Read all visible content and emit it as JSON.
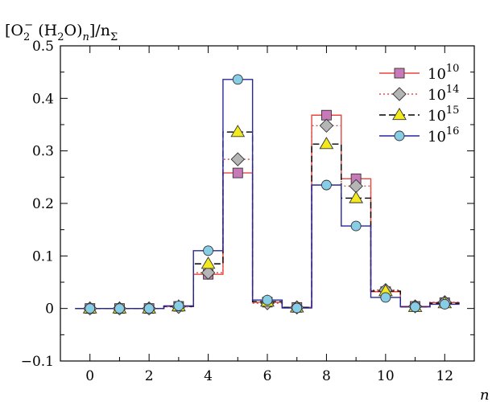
{
  "chart_data": {
    "type": "line",
    "ylabel_parts": [
      "[O",
      "2",
      "−",
      " (H",
      "2",
      "O)",
      "n",
      "]/n",
      "Σ"
    ],
    "xlabel": "n",
    "xlim": [
      -1,
      13
    ],
    "ylim": [
      -0.1,
      0.5
    ],
    "x_ticks": [
      0,
      2,
      4,
      6,
      8,
      10,
      12
    ],
    "x_tick_labels": [
      "0",
      "2",
      "4",
      "6",
      "8",
      "10",
      "12"
    ],
    "y_ticks": [
      -0.1,
      0,
      0.1,
      0.2,
      0.3,
      0.4,
      0.5
    ],
    "y_tick_labels": [
      "−0.1",
      "0",
      "0.1",
      "0.2",
      "0.3",
      "0.4",
      "0.5"
    ],
    "grid": false,
    "legend_position": "top-right",
    "x": [
      0,
      1,
      2,
      3,
      4,
      5,
      6,
      7,
      8,
      9,
      10,
      11,
      12
    ],
    "series": [
      {
        "name_base": "10",
        "name_exp": "10",
        "color": "#e8453c",
        "marker": "square",
        "marker_fill": "#c879b7",
        "dash": "solid",
        "values": [
          0.0,
          0.0,
          0.0,
          0.004,
          0.065,
          0.258,
          0.012,
          0.002,
          0.368,
          0.247,
          0.032,
          0.004,
          0.011
        ]
      },
      {
        "name_base": "10",
        "name_exp": "14",
        "color": "#d9534f",
        "marker": "diamond",
        "marker_fill": "#b5b5b5",
        "dash": "dotted",
        "values": [
          0.0,
          0.0,
          0.0,
          0.003,
          0.068,
          0.284,
          0.01,
          0.002,
          0.348,
          0.233,
          0.035,
          0.004,
          0.012
        ]
      },
      {
        "name_base": "10",
        "name_exp": "15",
        "color": "#000000",
        "marker": "triangle",
        "marker_fill": "#f2ea1d",
        "dash": "dashed",
        "values": [
          0.0,
          0.0,
          0.0,
          0.004,
          0.085,
          0.336,
          0.013,
          0.002,
          0.313,
          0.21,
          0.033,
          0.003,
          0.01
        ]
      },
      {
        "name_base": "10",
        "name_exp": "16",
        "color": "#27279a",
        "marker": "circle",
        "marker_fill": "#87cde6",
        "dash": "solid",
        "values": [
          0.0,
          0.0,
          0.0,
          0.005,
          0.11,
          0.436,
          0.016,
          0.001,
          0.235,
          0.157,
          0.021,
          0.003,
          0.008
        ]
      }
    ]
  }
}
